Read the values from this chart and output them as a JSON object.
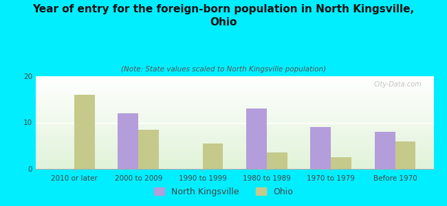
{
  "title": "Year of entry for the foreign-born population in North Kingsville,\nOhio",
  "subtitle": "(Note: State values scaled to North Kingsville population)",
  "categories": [
    "2010 or later",
    "2000 to 2009",
    "1990 to 1999",
    "1980 to 1989",
    "1970 to 1979",
    "Before 1970"
  ],
  "north_kingsville": [
    0,
    12,
    0,
    13,
    9,
    8
  ],
  "ohio": [
    16,
    8.5,
    5.5,
    3.5,
    2.5,
    6
  ],
  "nk_color": "#b39ddb",
  "ohio_color": "#c5c98a",
  "background_outer": "#00eeff",
  "ylim": [
    0,
    20
  ],
  "yticks": [
    0,
    10,
    20
  ],
  "title_fontsize": 11,
  "subtitle_fontsize": 7.5,
  "tick_fontsize": 7.5,
  "legend_fontsize": 9,
  "watermark": "City-Data.com"
}
